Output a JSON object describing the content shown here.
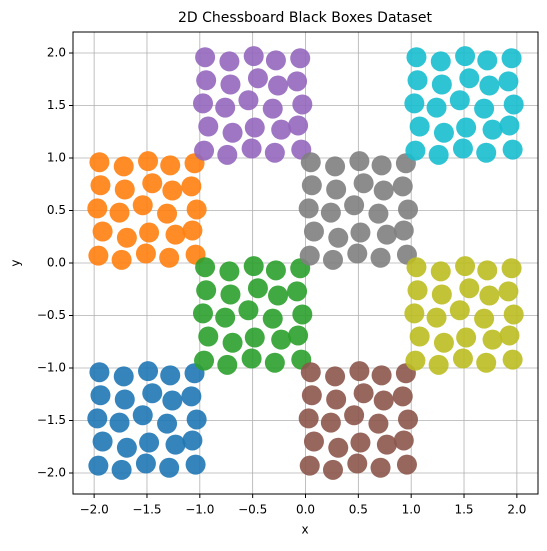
{
  "chart_data": {
    "type": "scatter",
    "title": "2D Chessboard Black Boxes Dataset",
    "x_label": "x",
    "y_label": "y",
    "grid": true,
    "xlim": [
      -2.2,
      2.2
    ],
    "ylim": [
      -2.2,
      2.2
    ],
    "xticks": [
      {
        "value": -2.0,
        "label": "−2.0"
      },
      {
        "value": -1.5,
        "label": "−1.5"
      },
      {
        "value": -1.0,
        "label": "−1.0"
      },
      {
        "value": -0.5,
        "label": "−0.5"
      },
      {
        "value": 0.0,
        "label": "0.0"
      },
      {
        "value": 0.5,
        "label": "0.5"
      },
      {
        "value": 1.0,
        "label": "1.0"
      },
      {
        "value": 1.5,
        "label": "1.5"
      },
      {
        "value": 2.0,
        "label": "2.0"
      }
    ],
    "yticks": [
      {
        "value": -2.0,
        "label": "−2.0"
      },
      {
        "value": -1.5,
        "label": "−1.5"
      },
      {
        "value": -1.0,
        "label": "−1.0"
      },
      {
        "value": -0.5,
        "label": "−0.5"
      },
      {
        "value": 0.0,
        "label": "0.0"
      },
      {
        "value": 0.5,
        "label": "0.5"
      },
      {
        "value": 1.0,
        "label": "1.0"
      },
      {
        "value": 1.5,
        "label": "1.5"
      },
      {
        "value": 2.0,
        "label": "2.0"
      }
    ],
    "series": [
      {
        "color": "#1f77b4",
        "x": [
          -1.96,
          -1.74,
          -1.51,
          -1.29,
          -1.04,
          -1.92,
          -1.69,
          -1.48,
          -1.23,
          -1.07,
          -1.97,
          -1.76,
          -1.54,
          -1.31,
          -1.03,
          -1.94,
          -1.71,
          -1.45,
          -1.26,
          -1.08,
          -1.95,
          -1.72,
          -1.49,
          -1.28,
          -1.05
        ],
        "y": [
          -1.93,
          -1.97,
          -1.91,
          -1.95,
          -1.92,
          -1.7,
          -1.76,
          -1.71,
          -1.73,
          -1.69,
          -1.48,
          -1.52,
          -1.45,
          -1.53,
          -1.49,
          -1.26,
          -1.3,
          -1.24,
          -1.31,
          -1.27,
          -1.04,
          -1.08,
          -1.03,
          -1.07,
          -1.05
        ]
      },
      {
        "color": "#ff7f0e",
        "x": [
          -1.96,
          -1.74,
          -1.51,
          -1.29,
          -1.04,
          -1.92,
          -1.69,
          -1.48,
          -1.23,
          -1.07,
          -1.97,
          -1.76,
          -1.54,
          -1.31,
          -1.03,
          -1.94,
          -1.71,
          -1.45,
          -1.26,
          -1.08,
          -1.95,
          -1.72,
          -1.49,
          -1.28,
          -1.05
        ],
        "y": [
          0.07,
          0.03,
          0.09,
          0.05,
          0.08,
          0.3,
          0.24,
          0.29,
          0.27,
          0.31,
          0.52,
          0.48,
          0.55,
          0.47,
          0.51,
          0.74,
          0.7,
          0.76,
          0.69,
          0.73,
          0.96,
          0.92,
          0.97,
          0.93,
          0.95
        ]
      },
      {
        "color": "#2ca02c",
        "x": [
          -0.96,
          -0.74,
          -0.51,
          -0.29,
          -0.04,
          -0.92,
          -0.69,
          -0.48,
          -0.23,
          -0.07,
          -0.97,
          -0.76,
          -0.54,
          -0.31,
          -0.03,
          -0.94,
          -0.71,
          -0.45,
          -0.26,
          -0.08,
          -0.95,
          -0.72,
          -0.49,
          -0.28,
          -0.05
        ],
        "y": [
          -0.93,
          -0.97,
          -0.91,
          -0.95,
          -0.92,
          -0.7,
          -0.76,
          -0.71,
          -0.73,
          -0.69,
          -0.48,
          -0.52,
          -0.45,
          -0.53,
          -0.49,
          -0.26,
          -0.3,
          -0.24,
          -0.31,
          -0.27,
          -0.04,
          -0.08,
          -0.03,
          -0.07,
          -0.05
        ]
      },
      {
        "color": "#9467bd",
        "x": [
          -0.96,
          -0.74,
          -0.51,
          -0.29,
          -0.04,
          -0.92,
          -0.69,
          -0.48,
          -0.23,
          -0.07,
          -0.97,
          -0.76,
          -0.54,
          -0.31,
          -0.03,
          -0.94,
          -0.71,
          -0.45,
          -0.26,
          -0.08,
          -0.95,
          -0.72,
          -0.49,
          -0.28,
          -0.05
        ],
        "y": [
          1.07,
          1.03,
          1.09,
          1.05,
          1.08,
          1.3,
          1.24,
          1.29,
          1.27,
          1.31,
          1.52,
          1.48,
          1.55,
          1.47,
          1.51,
          1.74,
          1.7,
          1.76,
          1.69,
          1.73,
          1.96,
          1.92,
          1.97,
          1.93,
          1.95
        ]
      },
      {
        "color": "#8c564b",
        "x": [
          0.04,
          0.26,
          0.49,
          0.71,
          0.96,
          0.08,
          0.31,
          0.52,
          0.77,
          0.93,
          0.03,
          0.24,
          0.46,
          0.69,
          0.97,
          0.06,
          0.29,
          0.55,
          0.74,
          0.92,
          0.05,
          0.28,
          0.51,
          0.72,
          0.95
        ],
        "y": [
          -1.93,
          -1.97,
          -1.91,
          -1.95,
          -1.92,
          -1.7,
          -1.76,
          -1.71,
          -1.73,
          -1.69,
          -1.48,
          -1.52,
          -1.45,
          -1.53,
          -1.49,
          -1.26,
          -1.3,
          -1.24,
          -1.31,
          -1.27,
          -1.04,
          -1.08,
          -1.03,
          -1.07,
          -1.05
        ]
      },
      {
        "color": "#7f7f7f",
        "x": [
          0.04,
          0.26,
          0.49,
          0.71,
          0.96,
          0.08,
          0.31,
          0.52,
          0.77,
          0.93,
          0.03,
          0.24,
          0.46,
          0.69,
          0.97,
          0.06,
          0.29,
          0.55,
          0.74,
          0.92,
          0.05,
          0.28,
          0.51,
          0.72,
          0.95
        ],
        "y": [
          0.07,
          0.03,
          0.09,
          0.05,
          0.08,
          0.3,
          0.24,
          0.29,
          0.27,
          0.31,
          0.52,
          0.48,
          0.55,
          0.47,
          0.51,
          0.74,
          0.7,
          0.76,
          0.69,
          0.73,
          0.96,
          0.92,
          0.97,
          0.93,
          0.95
        ]
      },
      {
        "color": "#bcbd22",
        "x": [
          1.04,
          1.26,
          1.49,
          1.71,
          1.96,
          1.08,
          1.31,
          1.52,
          1.77,
          1.93,
          1.03,
          1.24,
          1.46,
          1.69,
          1.97,
          1.06,
          1.29,
          1.55,
          1.74,
          1.92,
          1.05,
          1.28,
          1.51,
          1.72,
          1.95
        ],
        "y": [
          -0.93,
          -0.97,
          -0.91,
          -0.95,
          -0.92,
          -0.7,
          -0.76,
          -0.71,
          -0.73,
          -0.69,
          -0.48,
          -0.52,
          -0.45,
          -0.53,
          -0.49,
          -0.26,
          -0.3,
          -0.24,
          -0.31,
          -0.27,
          -0.04,
          -0.08,
          -0.03,
          -0.07,
          -0.05
        ]
      },
      {
        "color": "#17becf",
        "x": [
          1.04,
          1.26,
          1.49,
          1.71,
          1.96,
          1.08,
          1.31,
          1.52,
          1.77,
          1.93,
          1.03,
          1.24,
          1.46,
          1.69,
          1.97,
          1.06,
          1.29,
          1.55,
          1.74,
          1.92,
          1.05,
          1.28,
          1.51,
          1.72,
          1.95
        ],
        "y": [
          1.07,
          1.03,
          1.09,
          1.05,
          1.08,
          1.3,
          1.24,
          1.29,
          1.27,
          1.31,
          1.52,
          1.48,
          1.55,
          1.47,
          1.51,
          1.74,
          1.7,
          1.76,
          1.69,
          1.73,
          1.96,
          1.92,
          1.97,
          1.93,
          1.95
        ]
      }
    ]
  }
}
